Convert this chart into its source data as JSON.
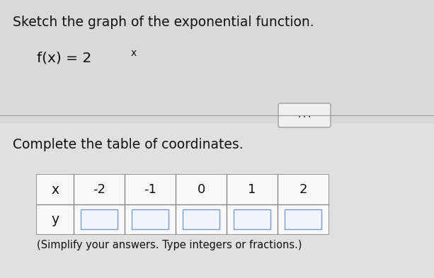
{
  "title_line1": "Sketch the graph of the exponential function.",
  "function_base": "f(x) = 2",
  "function_superscript": "x",
  "subtitle": "Complete the table of coordinates.",
  "footnote": "(Simplify your answers. Type integers or fractions.)",
  "table_x_label": "x",
  "table_y_label": "y",
  "x_values": [
    "-2",
    "-1",
    "0",
    "1",
    "2"
  ],
  "bg_color": "#c8c8c8",
  "upper_bg": "#e8e8e8",
  "lower_bg": "#f0f0f0",
  "table_bg": "#f5f5f5",
  "table_cell_bg": "#f0f4ff",
  "table_border": "#888888",
  "input_box_color": "#d8e4f8",
  "input_box_border": "#7799cc",
  "divider_color": "#999999",
  "text_color": "#111111",
  "dots_button_bg": "#f0f0f0",
  "dots_button_border": "#aaaaaa",
  "dots_color": "#555555"
}
